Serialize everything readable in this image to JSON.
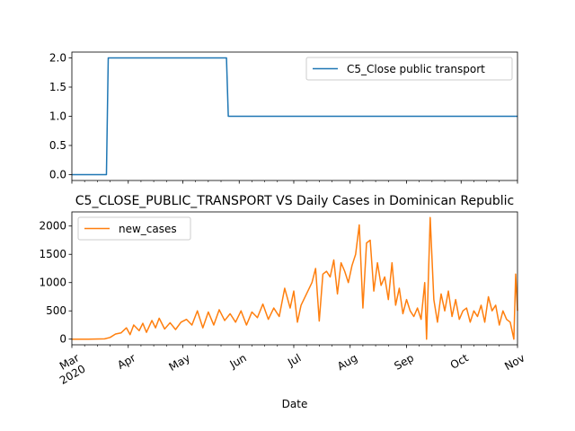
{
  "chart_data": [
    {
      "type": "line",
      "title": "",
      "xlabel": "",
      "ylabel": "",
      "ylim": [
        -0.1,
        2.1
      ],
      "y_ticks": [
        "0.0",
        "0.5",
        "1.0",
        "1.5",
        "2.0"
      ],
      "legend": "top-right",
      "series": [
        {
          "name": "C5_Close public transport",
          "color": "#1f77b4",
          "points": [
            [
              "2020-03-01",
              0
            ],
            [
              "2020-03-20",
              0
            ],
            [
              "2020-03-21",
              2
            ],
            [
              "2020-05-25",
              2
            ],
            [
              "2020-05-26",
              1
            ],
            [
              "2020-11-01",
              1
            ]
          ]
        }
      ]
    },
    {
      "type": "line",
      "title": "C5_CLOSE_PUBLIC_TRANSPORT VS Daily Cases in Dominican Republic",
      "xlabel": "Date",
      "ylabel": "",
      "ylim": [
        -100,
        2250
      ],
      "y_ticks": [
        "0",
        "500",
        "1000",
        "1500",
        "2000"
      ],
      "x_ticks": [
        "Mar\n2020",
        "Apr",
        "May",
        "Jun",
        "Jul",
        "Aug",
        "Sep",
        "Oct",
        "Nov"
      ],
      "legend": "top-left",
      "series": [
        {
          "name": "new_cases",
          "color": "#ff7f0e",
          "points": [
            [
              "2020-03-01",
              0
            ],
            [
              "2020-03-10",
              0
            ],
            [
              "2020-03-19",
              5
            ],
            [
              "2020-03-22",
              30
            ],
            [
              "2020-03-25",
              90
            ],
            [
              "2020-03-28",
              110
            ],
            [
              "2020-03-31",
              200
            ],
            [
              "2020-04-02",
              80
            ],
            [
              "2020-04-04",
              250
            ],
            [
              "2020-04-07",
              150
            ],
            [
              "2020-04-09",
              280
            ],
            [
              "2020-04-11",
              120
            ],
            [
              "2020-04-14",
              330
            ],
            [
              "2020-04-16",
              200
            ],
            [
              "2020-04-18",
              370
            ],
            [
              "2020-04-21",
              180
            ],
            [
              "2020-04-24",
              290
            ],
            [
              "2020-04-27",
              170
            ],
            [
              "2020-04-30",
              300
            ],
            [
              "2020-05-03",
              350
            ],
            [
              "2020-05-06",
              250
            ],
            [
              "2020-05-09",
              500
            ],
            [
              "2020-05-12",
              200
            ],
            [
              "2020-05-15",
              480
            ],
            [
              "2020-05-18",
              250
            ],
            [
              "2020-05-21",
              520
            ],
            [
              "2020-05-24",
              330
            ],
            [
              "2020-05-27",
              450
            ],
            [
              "2020-05-30",
              300
            ],
            [
              "2020-06-02",
              500
            ],
            [
              "2020-06-05",
              250
            ],
            [
              "2020-06-08",
              480
            ],
            [
              "2020-06-11",
              380
            ],
            [
              "2020-06-14",
              620
            ],
            [
              "2020-06-17",
              350
            ],
            [
              "2020-06-20",
              550
            ],
            [
              "2020-06-23",
              400
            ],
            [
              "2020-06-26",
              900
            ],
            [
              "2020-06-29",
              550
            ],
            [
              "2020-07-01",
              850
            ],
            [
              "2020-07-03",
              300
            ],
            [
              "2020-07-05",
              600
            ],
            [
              "2020-07-08",
              800
            ],
            [
              "2020-07-11",
              1000
            ],
            [
              "2020-07-13",
              1250
            ],
            [
              "2020-07-15",
              320
            ],
            [
              "2020-07-17",
              1150
            ],
            [
              "2020-07-19",
              1200
            ],
            [
              "2020-07-21",
              1100
            ],
            [
              "2020-07-23",
              1400
            ],
            [
              "2020-07-25",
              800
            ],
            [
              "2020-07-27",
              1350
            ],
            [
              "2020-07-29",
              1200
            ],
            [
              "2020-07-31",
              1000
            ],
            [
              "2020-08-02",
              1300
            ],
            [
              "2020-08-04",
              1500
            ],
            [
              "2020-08-06",
              2020
            ],
            [
              "2020-08-08",
              550
            ],
            [
              "2020-08-10",
              1700
            ],
            [
              "2020-08-12",
              1750
            ],
            [
              "2020-08-14",
              850
            ],
            [
              "2020-08-16",
              1350
            ],
            [
              "2020-08-18",
              950
            ],
            [
              "2020-08-20",
              1100
            ],
            [
              "2020-08-22",
              700
            ],
            [
              "2020-08-24",
              1350
            ],
            [
              "2020-08-26",
              600
            ],
            [
              "2020-08-28",
              900
            ],
            [
              "2020-08-30",
              450
            ],
            [
              "2020-09-01",
              700
            ],
            [
              "2020-09-03",
              500
            ],
            [
              "2020-09-05",
              400
            ],
            [
              "2020-09-07",
              550
            ],
            [
              "2020-09-09",
              350
            ],
            [
              "2020-09-11",
              1000
            ],
            [
              "2020-09-12",
              0
            ],
            [
              "2020-09-14",
              2150
            ],
            [
              "2020-09-16",
              700
            ],
            [
              "2020-09-18",
              300
            ],
            [
              "2020-09-20",
              800
            ],
            [
              "2020-09-22",
              500
            ],
            [
              "2020-09-24",
              850
            ],
            [
              "2020-09-26",
              400
            ],
            [
              "2020-09-28",
              700
            ],
            [
              "2020-09-30",
              350
            ],
            [
              "2020-10-02",
              500
            ],
            [
              "2020-10-04",
              550
            ],
            [
              "2020-10-06",
              300
            ],
            [
              "2020-10-08",
              500
            ],
            [
              "2020-10-10",
              400
            ],
            [
              "2020-10-12",
              600
            ],
            [
              "2020-10-14",
              300
            ],
            [
              "2020-10-16",
              750
            ],
            [
              "2020-10-18",
              500
            ],
            [
              "2020-10-20",
              600
            ],
            [
              "2020-10-22",
              250
            ],
            [
              "2020-10-24",
              500
            ],
            [
              "2020-10-26",
              350
            ],
            [
              "2020-10-28",
              300
            ],
            [
              "2020-10-30",
              0
            ],
            [
              "2020-10-31",
              1150
            ],
            [
              "2020-11-01",
              500
            ]
          ]
        }
      ]
    }
  ]
}
